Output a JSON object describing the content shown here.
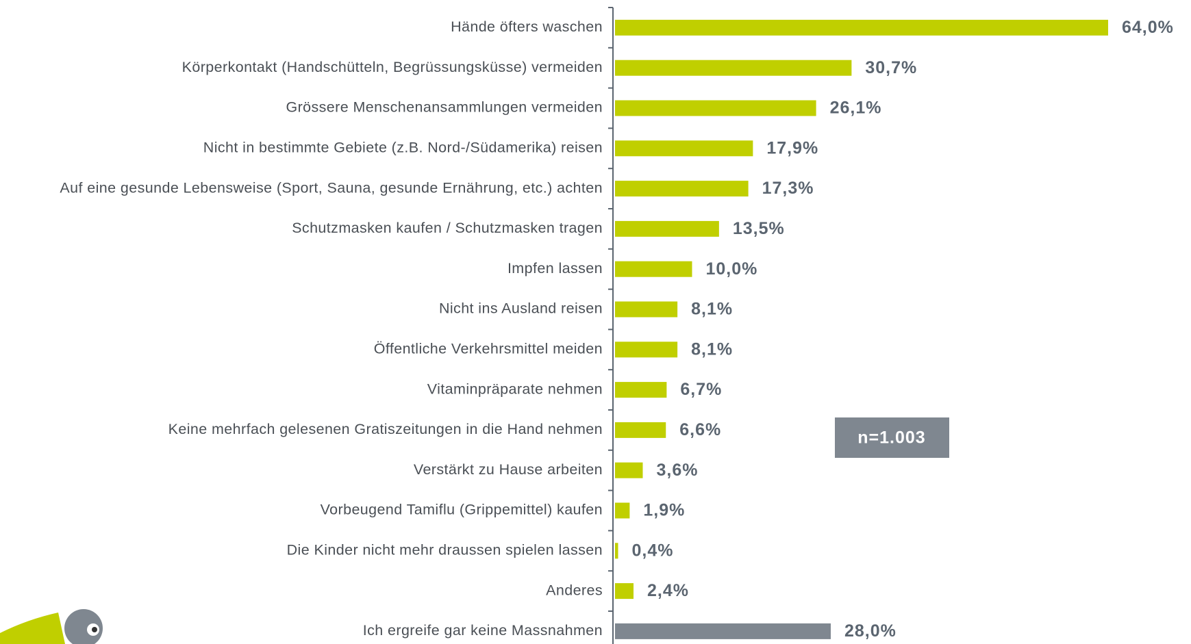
{
  "chart_data": {
    "type": "hbar",
    "categories": [
      "Hände öfters waschen",
      "Körperkontakt (Handschütteln, Begrüssungsküsse) vermeiden",
      "Grössere Menschenansammlungen vermeiden",
      "Nicht in bestimmte Gebiete (z.B. Nord-/Südamerika) reisen",
      "Auf eine gesunde Lebensweise (Sport, Sauna, gesunde Ernährung, etc.) achten",
      "Schutzmasken kaufen / Schutzmasken tragen",
      "Impfen lassen",
      "Nicht ins Ausland reisen",
      "Öffentliche Verkehrsmittel meiden",
      "Vitaminpräparate nehmen",
      "Keine mehrfach gelesenen Gratiszeitungen in die Hand nehmen",
      "Verstärkt zu Hause arbeiten",
      "Vorbeugend Tamiflu (Grippemittel) kaufen",
      "Die Kinder nicht mehr draussen spielen lassen",
      "Anderes",
      "Ich ergreife gar keine Massnahmen"
    ],
    "values": [
      64.0,
      30.7,
      26.1,
      17.9,
      17.3,
      13.5,
      10.0,
      8.1,
      8.1,
      6.7,
      6.6,
      3.6,
      1.9,
      0.4,
      2.4,
      28.0
    ],
    "value_labels": [
      "64,0%",
      "30,7%",
      "26,1%",
      "17,9%",
      "17,3%",
      "13,5%",
      "10,0%",
      "8,1%",
      "8,1%",
      "6,7%",
      "6,6%",
      "3,6%",
      "1,9%",
      "0,4%",
      "2,4%",
      "28,0%"
    ],
    "colors": [
      "#c0cf00",
      "#c0cf00",
      "#c0cf00",
      "#c0cf00",
      "#c0cf00",
      "#c0cf00",
      "#c0cf00",
      "#c0cf00",
      "#c0cf00",
      "#c0cf00",
      "#c0cf00",
      "#c0cf00",
      "#c0cf00",
      "#c0cf00",
      "#c0cf00",
      "#7f8790"
    ],
    "annotation": "n=1.003"
  }
}
